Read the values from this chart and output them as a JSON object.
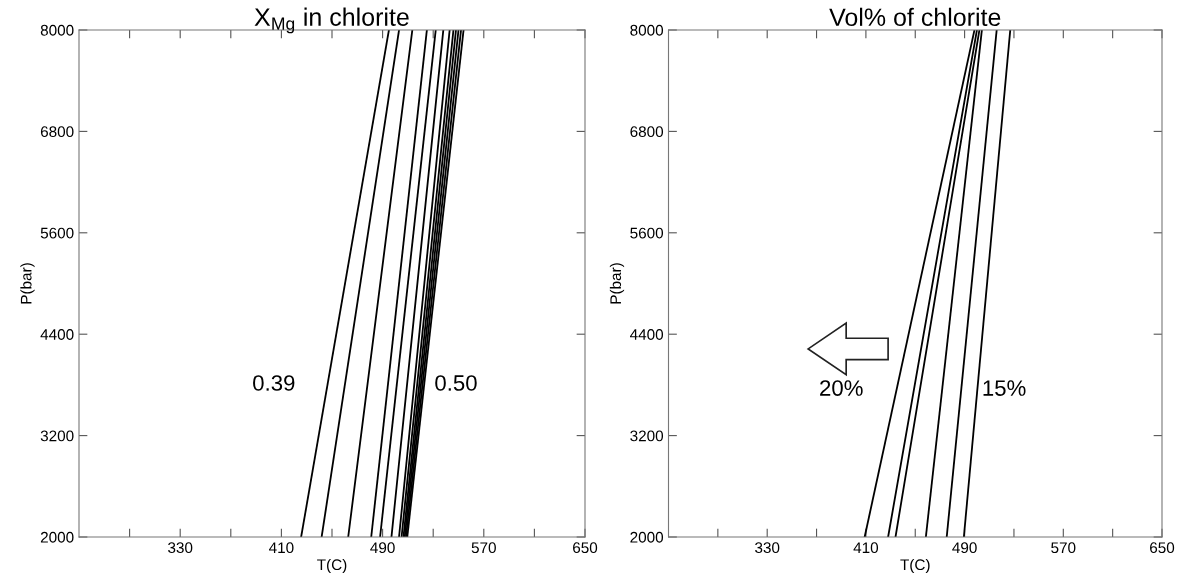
{
  "chart_data": [
    {
      "type": "line",
      "title": "X$_{Mg}$ in chlorite",
      "xlabel": "T(C)",
      "ylabel": "P(bar)",
      "xlim": [
        250,
        650
      ],
      "ylim": [
        2000,
        8000
      ],
      "xticks": [
        {
          "value": 290,
          "label": null
        },
        330,
        {
          "value": 370,
          "label": null
        },
        410,
        {
          "value": 450,
          "label": null
        },
        490,
        {
          "value": 530,
          "label": null
        },
        570,
        {
          "value": 610,
          "label": null
        },
        650
      ],
      "yticks": [
        2000,
        3200,
        4400,
        5600,
        6800,
        8000
      ],
      "grid": false,
      "marker": "none",
      "line_style": "solid",
      "annotations": [
        "0.39",
        "0.50"
      ],
      "series": [
        {
          "color": "#000000",
          "x": [
            425.6,
            495
          ],
          "values": [
            2000,
            8000
          ]
        },
        {
          "color": "#000000",
          "x": [
            441.8,
            503
          ],
          "values": [
            2000,
            8000
          ]
        },
        {
          "color": "#000000",
          "x": [
            462.8,
            513.5
          ],
          "values": [
            2000,
            8000
          ]
        },
        {
          "color": "#000000",
          "x": [
            481,
            525
          ],
          "values": [
            2000,
            8000
          ]
        },
        {
          "color": "#000000",
          "x": [
            488,
            532
          ],
          "values": [
            2000,
            8000
          ]
        },
        {
          "color": "#000000",
          "x": [
            497,
            538
          ],
          "values": [
            2000,
            8000
          ]
        },
        {
          "color": "#000000",
          "x": [
            503,
            543
          ],
          "values": [
            2000,
            8000
          ]
        },
        {
          "color": "#000000",
          "x": [
            505,
            546
          ],
          "values": [
            2000,
            8000
          ]
        },
        {
          "color": "#000000",
          "x": [
            506.5,
            548
          ],
          "values": [
            2000,
            8000
          ]
        },
        {
          "color": "#000000",
          "x": [
            507.5,
            550
          ],
          "values": [
            2000,
            8000
          ]
        },
        {
          "color": "#000000",
          "x": [
            508.5,
            552
          ],
          "values": [
            2000,
            8000
          ]
        },
        {
          "color": "#000000",
          "x": [
            509.5,
            554
          ],
          "values": [
            2000,
            8000
          ]
        }
      ]
    },
    {
      "type": "line",
      "title": "Vol% of chlorite",
      "xlabel": "T(C)",
      "ylabel": "P(bar)",
      "xlim": [
        250,
        650
      ],
      "ylim": [
        2000,
        8000
      ],
      "xticks": [
        {
          "value": 290,
          "label": null
        },
        330,
        {
          "value": 370,
          "label": null
        },
        410,
        {
          "value": 450,
          "label": null
        },
        490,
        {
          "value": 530,
          "label": null
        },
        570,
        {
          "value": 610,
          "label": null
        },
        650
      ],
      "yticks": [
        2000,
        3200,
        4400,
        5600,
        6800,
        8000
      ],
      "grid": false,
      "marker": "none",
      "line_style": "solid",
      "annotations": [
        "20%",
        "15%"
      ],
      "series": [
        {
          "color": "#000000",
          "x": [
            409,
            498
          ],
          "values": [
            2000,
            8000
          ]
        },
        {
          "color": "#000000",
          "x": [
            428,
            500
          ],
          "values": [
            2000,
            8000
          ]
        },
        {
          "color": "#000000",
          "x": [
            434,
            502
          ],
          "values": [
            2000,
            8000
          ]
        },
        {
          "color": "#000000",
          "x": [
            458.6,
            504
          ],
          "values": [
            2000,
            8000
          ]
        },
        {
          "color": "#000000",
          "x": [
            475.5,
            516
          ],
          "values": [
            2000,
            8000
          ]
        },
        {
          "color": "#000000",
          "x": [
            489.4,
            527
          ],
          "values": [
            2000,
            8000
          ]
        }
      ]
    }
  ]
}
